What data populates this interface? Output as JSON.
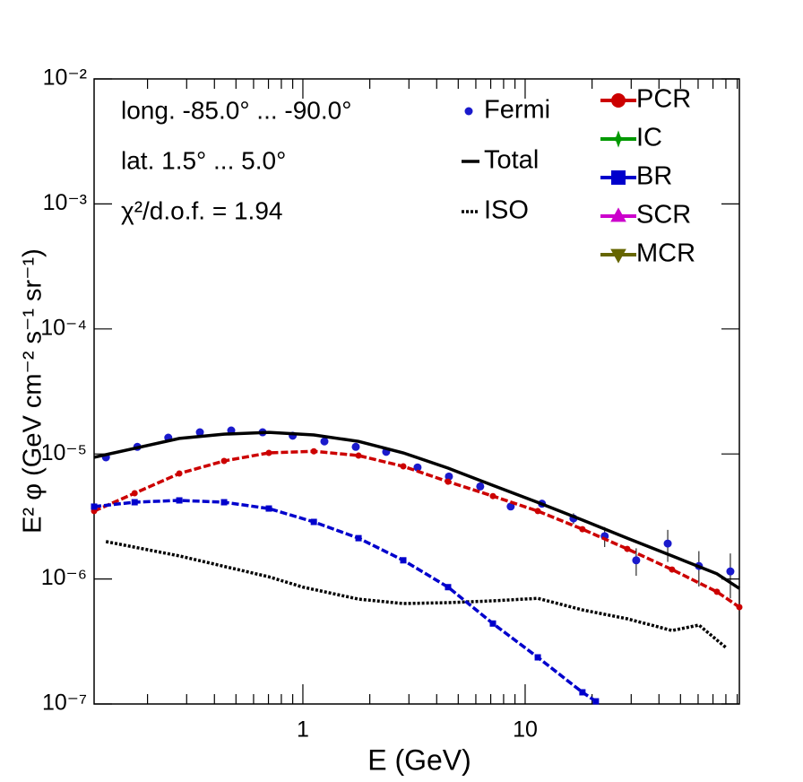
{
  "chart_data": {
    "type": "line",
    "xlabel": "E (GeV)",
    "ylabel": "E² φ (GeV cm⁻² s⁻¹ sr⁻¹)",
    "xscale": "log",
    "yscale": "log",
    "xlim": [
      0.115,
      92
    ],
    "ylim": [
      1e-07,
      0.01
    ],
    "xticks": [
      1,
      10
    ],
    "xminorticks": [
      0.2,
      0.3,
      0.4,
      0.5,
      0.6,
      0.7,
      0.8,
      0.9,
      2,
      3,
      4,
      5,
      6,
      7,
      8,
      9,
      20,
      30,
      40,
      50,
      60,
      70,
      80,
      90
    ],
    "yticks": [
      {
        "value": 1e-07,
        "label": "10⁻⁷"
      },
      {
        "value": 1e-06,
        "label": "10⁻⁶"
      },
      {
        "value": 1e-05,
        "label": "10⁻⁵"
      },
      {
        "value": 0.0001,
        "label": "10⁻⁴"
      },
      {
        "value": 0.001,
        "label": "10⁻³"
      },
      {
        "value": 0.01,
        "label": "10⁻²"
      }
    ],
    "annotations": [
      "long. -85.0° ... -90.0°",
      "lat. 1.5° ... 5.0°",
      "χ²/d.o.f. = 1.94"
    ],
    "series": [
      {
        "name": "Fermi",
        "color": "#1a1acc",
        "style": "points",
        "marker": "circle",
        "x": [
          0.13,
          0.18,
          0.248,
          0.344,
          0.476,
          0.659,
          0.9,
          1.25,
          1.73,
          2.37,
          3.28,
          4.54,
          6.28,
          8.61,
          11.9,
          16.5,
          22.8,
          31.6,
          43.8,
          60.5,
          83.8
        ],
        "values": [
          9.4e-06,
          1.14e-05,
          1.35e-05,
          1.49e-05,
          1.54e-05,
          1.49e-05,
          1.4e-05,
          1.26e-05,
          1.14e-05,
          1.04e-05,
          7.8e-06,
          6.6e-06,
          5.5e-06,
          3.8e-06,
          4e-06,
          3.05e-06,
          2.2e-06,
          1.41e-06,
          1.92e-06,
          1.27e-06,
          1.15e-06
        ],
        "errors": [
          2e-07,
          2e-07,
          2e-07,
          2e-07,
          2e-07,
          2e-07,
          2e-07,
          2e-07,
          2e-07,
          2e-07,
          1.5e-07,
          1.5e-07,
          1.5e-07,
          2e-07,
          2.5e-07,
          3e-07,
          4e-07,
          3.5e-07,
          5.5e-07,
          4e-07,
          4.5e-07
        ]
      },
      {
        "name": "Total",
        "color": "#000000",
        "style": "solid",
        "marker": "none",
        "x": [
          0.115,
          0.175,
          0.278,
          0.442,
          0.703,
          1.12,
          1.78,
          2.83,
          4.5,
          7.16,
          11.4,
          18.1,
          28.8,
          45.8,
          72.9,
          92
        ],
        "values": [
          9.4e-06,
          1.11e-05,
          1.33e-05,
          1.44e-05,
          1.49e-05,
          1.42e-05,
          1.26e-05,
          1.02e-05,
          7.7e-06,
          5.6e-06,
          4.1e-06,
          2.96e-06,
          2.12e-06,
          1.53e-06,
          1.1e-06,
          8.4e-07
        ]
      },
      {
        "name": "ISO",
        "color": "#000000",
        "style": "dotted",
        "marker": "none",
        "x": [
          0.13,
          0.278,
          0.703,
          1,
          1.78,
          2.83,
          4.5,
          7.16,
          11.4,
          18.1,
          28.8,
          45.8,
          60.5,
          80.0
        ],
        "values": [
          1.99e-06,
          1.53e-06,
          1.04e-06,
          8.6e-07,
          6.9e-07,
          6.36e-07,
          6.47e-07,
          6.68e-07,
          7e-07,
          5.66e-07,
          4.8e-07,
          3.87e-07,
          4.28e-07,
          2.83e-07
        ]
      },
      {
        "name": "PCR",
        "color": "#cc0000",
        "style": "dashed",
        "marker": "circle",
        "x": [
          0.115,
          0.175,
          0.278,
          0.442,
          0.703,
          1.12,
          1.78,
          2.83,
          4.5,
          7.16,
          11.4,
          18.1,
          28.8,
          45.8,
          72.9,
          92
        ],
        "values": [
          3.49e-06,
          4.85e-06,
          6.98e-06,
          8.79e-06,
          1.02e-05,
          1.05e-05,
          9.7e-06,
          7.96e-06,
          6e-06,
          4.6e-06,
          3.49e-06,
          2.5e-06,
          1.74e-06,
          1.19e-06,
          7.9e-07,
          5.95e-07
        ]
      },
      {
        "name": "IC",
        "color": "#009900",
        "style": "dashed",
        "marker": "star",
        "x": [],
        "values": []
      },
      {
        "name": "BR",
        "color": "#0000cc",
        "style": "dashed",
        "marker": "square",
        "x": [
          0.115,
          0.175,
          0.278,
          0.442,
          0.703,
          1.12,
          1.78,
          2.83,
          4.5,
          7.16,
          11.4,
          18.1,
          20.8
        ],
        "values": [
          3.79e-06,
          4.11e-06,
          4.25e-06,
          4.11e-06,
          3.66e-06,
          2.86e-06,
          2.12e-06,
          1.41e-06,
          8.6e-07,
          4.4e-07,
          2.36e-07,
          1.24e-07,
          1.05e-07
        ]
      },
      {
        "name": "SCR",
        "color": "#cc00cc",
        "style": "dashed",
        "marker": "triangle-up",
        "x": [],
        "values": []
      },
      {
        "name": "MCR",
        "color": "#666600",
        "style": "dashed",
        "marker": "triangle-down",
        "x": [],
        "values": []
      }
    ]
  }
}
